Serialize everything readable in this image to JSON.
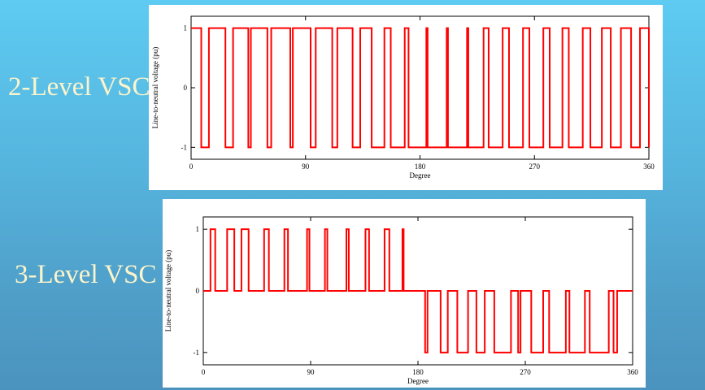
{
  "titles": {
    "two_level": "2-Level VSC",
    "three_level": "3-Level VSC"
  },
  "chart_data": [
    {
      "type": "line",
      "chart_id": "two-level",
      "title": "",
      "xlabel": "Degree",
      "ylabel": "Line-to-neutral voltage (pu)",
      "xlim": [
        0,
        360
      ],
      "ylim": [
        -1.2,
        1.2
      ],
      "xticks": [
        0,
        90,
        180,
        270,
        360
      ],
      "yticks": [
        -1,
        0,
        1
      ],
      "grid": false,
      "series": [
        {
          "color": "#ff0000",
          "step_x": [
            0,
            8,
            14,
            27,
            33,
            45,
            47,
            60,
            63,
            78,
            80,
            94,
            98,
            111,
            115,
            127,
            133,
            142,
            152,
            157,
            168,
            171,
            185,
            186,
            201,
            202,
            217,
            218,
            230,
            234,
            245,
            250,
            261,
            266,
            277,
            282,
            292,
            297,
            308,
            314,
            323,
            330,
            338,
            346,
            353,
            360
          ],
          "step_y": [
            1,
            -1,
            1,
            -1,
            1,
            -1,
            1,
            -1,
            1,
            -1,
            1,
            -1,
            1,
            -1,
            1,
            -1,
            1,
            -1,
            1,
            -1,
            1,
            -1,
            1,
            -1,
            1,
            -1,
            1,
            -1,
            1,
            -1,
            1,
            -1,
            1,
            -1,
            1,
            -1,
            1,
            -1,
            1,
            -1,
            1,
            -1,
            1,
            -1,
            1,
            -1
          ]
        }
      ]
    },
    {
      "type": "line",
      "chart_id": "three-level",
      "title": "",
      "xlabel": "Degree",
      "ylabel": "Line-to-neutral voltage (pu)",
      "xlim": [
        0,
        360
      ],
      "ylim": [
        -1.2,
        1.2
      ],
      "xticks": [
        0,
        90,
        180,
        270,
        360
      ],
      "yticks": [
        -1,
        0,
        1
      ],
      "grid": false,
      "series": [
        {
          "color": "#ff0000",
          "step_x": [
            0,
            6,
            10,
            20,
            26,
            32,
            38,
            51,
            55,
            68,
            71,
            87,
            89,
            102,
            104,
            120,
            122,
            136,
            139,
            152,
            156,
            167,
            168,
            180,
            186,
            188,
            199,
            205,
            213,
            222,
            229,
            236,
            244,
            258,
            264,
            266,
            275,
            285,
            290,
            304,
            307,
            320,
            324,
            340,
            344,
            347,
            354,
            360
          ],
          "step_y": [
            0,
            1,
            0,
            1,
            0,
            1,
            0,
            1,
            0,
            1,
            0,
            1,
            0,
            1,
            0,
            1,
            0,
            1,
            0,
            1,
            0,
            1,
            0,
            0,
            -1,
            0,
            -1,
            0,
            -1,
            0,
            -1,
            0,
            -1,
            0,
            -1,
            0,
            -1,
            0,
            -1,
            0,
            -1,
            0,
            -1,
            0,
            -1,
            0,
            0,
            0
          ]
        }
      ]
    }
  ]
}
